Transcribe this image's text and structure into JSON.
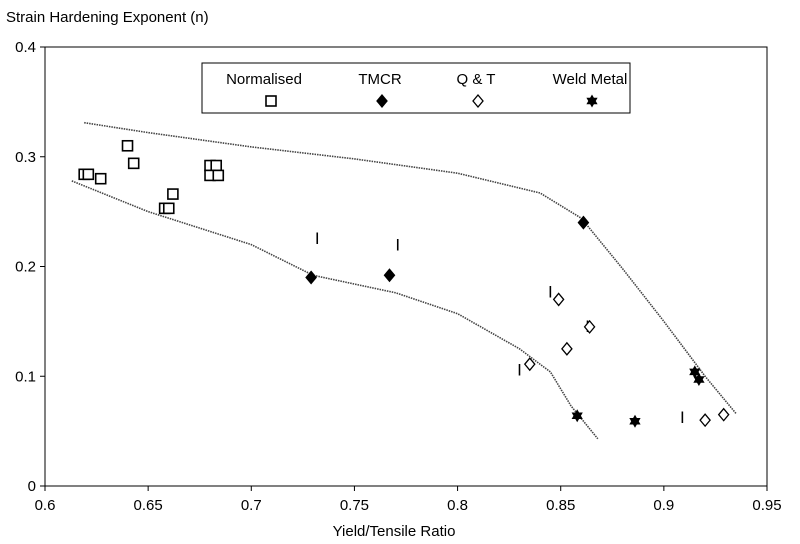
{
  "chart_data": {
    "type": "scatter",
    "ylabel": "Strain Hardening Exponent (n)",
    "xlabel": "Yield/Tensile Ratio",
    "xlim": [
      0.6,
      0.95
    ],
    "ylim": [
      0,
      0.4
    ],
    "x_ticks": [
      "0.6",
      "0.65",
      "0.7",
      "0.75",
      "0.8",
      "0.85",
      "0.9",
      "0.95"
    ],
    "y_ticks": [
      "0",
      "0.1",
      "0.2",
      "0.3",
      "0.4"
    ],
    "grid": false,
    "legend_position": "top",
    "series": [
      {
        "name": "Normalised",
        "marker": "open-square",
        "points": [
          [
            0.619,
            0.284
          ],
          [
            0.621,
            0.284
          ],
          [
            0.627,
            0.28
          ],
          [
            0.64,
            0.31
          ],
          [
            0.643,
            0.294
          ],
          [
            0.658,
            0.253
          ],
          [
            0.66,
            0.253
          ],
          [
            0.662,
            0.266
          ],
          [
            0.68,
            0.292
          ],
          [
            0.683,
            0.292
          ],
          [
            0.68,
            0.283
          ],
          [
            0.684,
            0.283
          ]
        ]
      },
      {
        "name": "TMCR",
        "marker": "filled-diamond",
        "points": [
          [
            0.729,
            0.19
          ],
          [
            0.767,
            0.192
          ],
          [
            0.861,
            0.24
          ]
        ]
      },
      {
        "name": "Q & T",
        "marker": "open-diamond",
        "points": [
          [
            0.835,
            0.111
          ],
          [
            0.849,
            0.17
          ],
          [
            0.853,
            0.125
          ],
          [
            0.864,
            0.145
          ],
          [
            0.92,
            0.06
          ],
          [
            0.929,
            0.065
          ]
        ]
      },
      {
        "name": "Weld Metal",
        "marker": "star",
        "points": [
          [
            0.858,
            0.064
          ],
          [
            0.886,
            0.059
          ],
          [
            0.915,
            0.104
          ],
          [
            0.917,
            0.097
          ]
        ]
      }
    ],
    "annotations": [
      {
        "label": "I",
        "x": 0.732,
        "y": 0.226
      },
      {
        "label": "I",
        "x": 0.771,
        "y": 0.22
      },
      {
        "label": "I",
        "x": 0.845,
        "y": 0.177
      },
      {
        "label": "I",
        "x": 0.863,
        "y": 0.146
      },
      {
        "label": "I",
        "x": 0.83,
        "y": 0.106
      },
      {
        "label": "I",
        "x": 0.909,
        "y": 0.063
      }
    ],
    "bound_lines": [
      {
        "points": [
          [
            0.619,
            0.331
          ],
          [
            0.65,
            0.322
          ],
          [
            0.7,
            0.309
          ],
          [
            0.75,
            0.298
          ],
          [
            0.8,
            0.285
          ],
          [
            0.84,
            0.267
          ],
          [
            0.86,
            0.244
          ],
          [
            0.88,
            0.198
          ],
          [
            0.9,
            0.15
          ],
          [
            0.92,
            0.1
          ],
          [
            0.935,
            0.066
          ]
        ]
      },
      {
        "points": [
          [
            0.613,
            0.278
          ],
          [
            0.65,
            0.25
          ],
          [
            0.7,
            0.22
          ],
          [
            0.73,
            0.192
          ],
          [
            0.77,
            0.176
          ],
          [
            0.8,
            0.157
          ],
          [
            0.83,
            0.125
          ],
          [
            0.845,
            0.104
          ],
          [
            0.855,
            0.073
          ],
          [
            0.868,
            0.043
          ]
        ]
      }
    ]
  }
}
